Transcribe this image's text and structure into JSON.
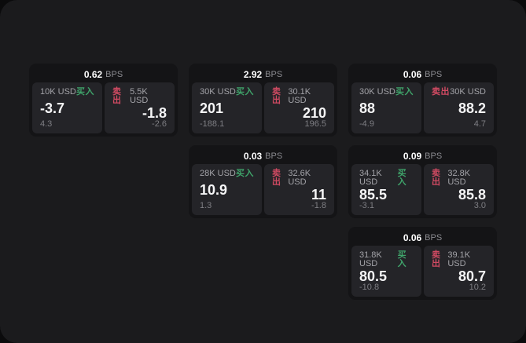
{
  "app": {
    "bps_unit": "BPS",
    "buy_label": "买入",
    "sell_label": "卖出",
    "colors": {
      "page_bg": "#1b1b1d",
      "outer_bg": "#0b0b0c",
      "card_bg": "#141416",
      "panel_bg": "#242428",
      "buy_green": "#3fa36a",
      "sell_red": "#d04a62",
      "value_white": "#f5f5f6",
      "muted_gray": "#a3a3a8"
    }
  },
  "cards": [
    {
      "bps": "0.62",
      "buy": {
        "amount": "10K USD",
        "value": "-3.7",
        "delta": "4.3"
      },
      "sell": {
        "amount": "5.5K USD",
        "value": "-1.8",
        "delta": "-2.6"
      }
    },
    {
      "bps": "2.92",
      "buy": {
        "amount": "30K USD",
        "value": "201",
        "delta": "-188.1"
      },
      "sell": {
        "amount": "30.1K USD",
        "value": "210",
        "delta": "196.5"
      }
    },
    {
      "bps": "0.06",
      "buy": {
        "amount": "30K USD",
        "value": "88",
        "delta": "-4.9"
      },
      "sell": {
        "amount": "30K USD",
        "value": "88.2",
        "delta": "4.7"
      }
    },
    {
      "bps": "0.03",
      "buy": {
        "amount": "28K USD",
        "value": "10.9",
        "delta": "1.3"
      },
      "sell": {
        "amount": "32.6K USD",
        "value": "11",
        "delta": "-1.8"
      }
    },
    {
      "bps": "0.09",
      "buy": {
        "amount": "34.1K USD",
        "value": "85.5",
        "delta": "-3.1"
      },
      "sell": {
        "amount": "32.8K USD",
        "value": "85.8",
        "delta": "3.0"
      }
    },
    {
      "bps": "0.06",
      "buy": {
        "amount": "31.8K USD",
        "value": "80.5",
        "delta": "-10.8"
      },
      "sell": {
        "amount": "39.1K USD",
        "value": "80.7",
        "delta": "10.2"
      }
    }
  ]
}
